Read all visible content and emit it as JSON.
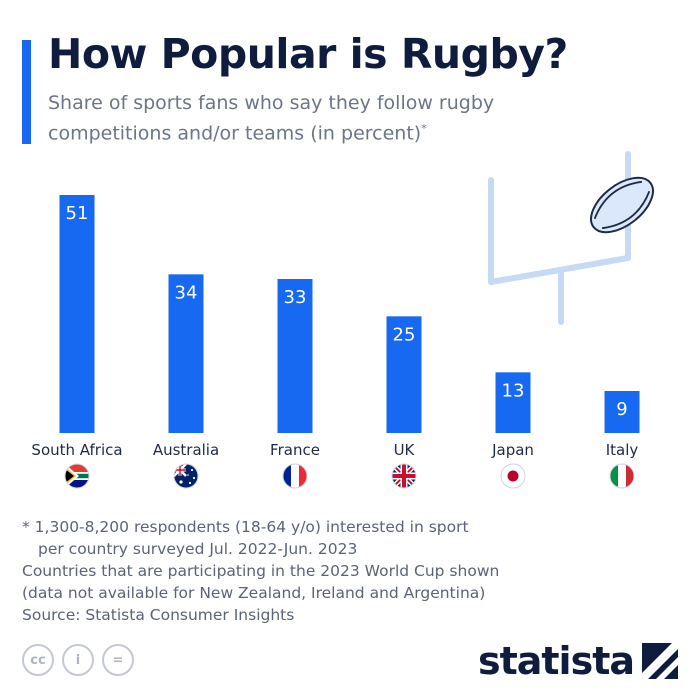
{
  "header": {
    "title": "How Popular is Rugby?",
    "subtitle": "Share of sports fans who say they follow rugby competitions and/or teams (in percent)",
    "subtitle_mark": "*"
  },
  "chart_data": {
    "type": "bar",
    "title": "How Popular is Rugby?",
    "subtitle": "Share of sports fans who say they follow rugby competitions and/or teams (in percent)",
    "categories": [
      "South Africa",
      "Australia",
      "France",
      "UK",
      "Japan",
      "Italy"
    ],
    "values": [
      51,
      34,
      33,
      25,
      13,
      9
    ],
    "flag_icons": [
      "south-africa-flag-icon",
      "australia-flag-icon",
      "france-flag-icon",
      "uk-flag-icon",
      "japan-flag-icon",
      "italy-flag-icon"
    ],
    "ylim": [
      0,
      51
    ],
    "grid": false,
    "bar_color": "#1769f2",
    "value_label_color": "#ffffff"
  },
  "footnotes": {
    "line1": "* 1,300-8,200 respondents (18-64 y/o) interested in sport",
    "line2": "per country surveyed Jul. 2022-Jun. 2023",
    "line3": "Countries that are participating in the 2023 World Cup shown",
    "line4": "(data not available for New Zealand, Ireland and Argentina)",
    "source": "Source: Statista Consumer Insights"
  },
  "license_icons": [
    "creative-commons-icon",
    "attribution-icon",
    "no-derivatives-icon"
  ],
  "license_glyphs": [
    "cc",
    "i",
    "="
  ],
  "brand": {
    "name": "statista",
    "logo_icon": "statista-logo-icon"
  },
  "colors": {
    "accent": "#1769f2",
    "title": "#0f1c3d",
    "goalpost": "#c6d9f5"
  }
}
